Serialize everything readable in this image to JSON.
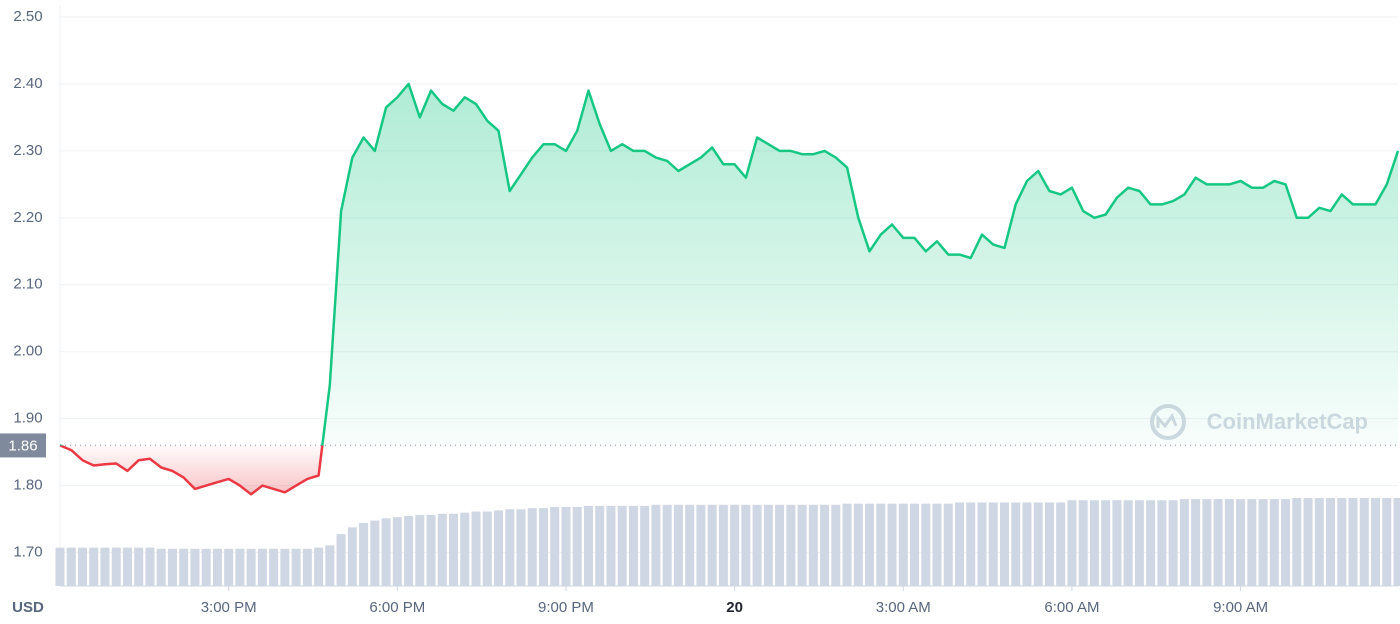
{
  "chart_data": {
    "type": "line",
    "y_label": "USD",
    "watermark": "CoinMarketCap",
    "baseline": 1.86,
    "color_up": "#16c784",
    "color_down": "#ea3943",
    "volume_color": "#cfd6e4",
    "grid": true,
    "xlim": [
      12,
      35.8
    ],
    "xticks": [
      {
        "value": 15,
        "label": "3:00 PM"
      },
      {
        "value": 18,
        "label": "6:00 PM"
      },
      {
        "value": 21,
        "label": "9:00 PM"
      },
      {
        "value": 24,
        "label": "20"
      },
      {
        "value": 27,
        "label": "3:00 AM"
      },
      {
        "value": 30,
        "label": "6:00 AM"
      },
      {
        "value": 33,
        "label": "9:00 AM"
      }
    ],
    "ylim": [
      1.65,
      2.5
    ],
    "yticks": [
      {
        "value": 1.7,
        "label": "1.70"
      },
      {
        "value": 1.8,
        "label": "1.80"
      },
      {
        "value": 1.9,
        "label": "1.90"
      },
      {
        "value": 2.0,
        "label": "2.00"
      },
      {
        "value": 2.1,
        "label": "2.10"
      },
      {
        "value": 2.2,
        "label": "2.20"
      },
      {
        "value": 2.3,
        "label": "2.30"
      },
      {
        "value": 2.4,
        "label": "2.40"
      },
      {
        "value": 2.5,
        "label": "2.50"
      }
    ],
    "x": [
      12.0,
      12.2,
      12.4,
      12.6,
      12.8,
      13.0,
      13.2,
      13.4,
      13.6,
      13.8,
      14.0,
      14.2,
      14.4,
      14.6,
      14.8,
      15.0,
      15.2,
      15.4,
      15.6,
      15.8,
      16.0,
      16.2,
      16.4,
      16.6,
      16.8,
      17.0,
      17.2,
      17.4,
      17.6,
      17.8,
      18.0,
      18.2,
      18.4,
      18.6,
      18.8,
      19.0,
      19.2,
      19.4,
      19.6,
      19.8,
      20.0,
      20.2,
      20.4,
      20.6,
      20.8,
      21.0,
      21.2,
      21.4,
      21.6,
      21.8,
      22.0,
      22.2,
      22.4,
      22.6,
      22.8,
      23.0,
      23.2,
      23.4,
      23.6,
      23.8,
      24.0,
      24.2,
      24.4,
      24.6,
      24.8,
      25.0,
      25.2,
      25.4,
      25.6,
      25.8,
      26.0,
      26.2,
      26.4,
      26.6,
      26.8,
      27.0,
      27.2,
      27.4,
      27.6,
      27.8,
      28.0,
      28.2,
      28.4,
      28.6,
      28.8,
      29.0,
      29.2,
      29.4,
      29.6,
      29.8,
      30.0,
      30.2,
      30.4,
      30.6,
      30.8,
      31.0,
      31.2,
      31.4,
      31.6,
      31.8,
      32.0,
      32.2,
      32.4,
      32.6,
      32.8,
      33.0,
      33.2,
      33.4,
      33.6,
      33.8,
      34.0,
      34.2,
      34.4,
      34.6,
      34.8,
      35.0,
      35.2,
      35.4,
      35.6,
      35.8
    ],
    "values": [
      1.86,
      1.853,
      1.838,
      1.83,
      1.832,
      1.833,
      1.822,
      1.838,
      1.84,
      1.827,
      1.822,
      1.812,
      1.795,
      1.8,
      1.805,
      1.81,
      1.8,
      1.787,
      1.8,
      1.795,
      1.79,
      1.8,
      1.81,
      1.815,
      1.95,
      2.21,
      2.29,
      2.32,
      2.3,
      2.365,
      2.38,
      2.4,
      2.35,
      2.39,
      2.37,
      2.36,
      2.38,
      2.37,
      2.345,
      2.33,
      2.24,
      2.265,
      2.29,
      2.31,
      2.31,
      2.3,
      2.33,
      2.39,
      2.34,
      2.3,
      2.31,
      2.3,
      2.3,
      2.29,
      2.285,
      2.27,
      2.28,
      2.29,
      2.305,
      2.28,
      2.28,
      2.26,
      2.32,
      2.31,
      2.3,
      2.3,
      2.295,
      2.295,
      2.3,
      2.29,
      2.275,
      2.2,
      2.15,
      2.175,
      2.19,
      2.17,
      2.17,
      2.15,
      2.165,
      2.145,
      2.145,
      2.14,
      2.175,
      2.16,
      2.155,
      2.22,
      2.255,
      2.27,
      2.24,
      2.235,
      2.245,
      2.21,
      2.2,
      2.205,
      2.23,
      2.245,
      2.24,
      2.22,
      2.22,
      2.225,
      2.235,
      2.26,
      2.25,
      2.25,
      2.25,
      2.255,
      2.245,
      2.245,
      2.255,
      2.25,
      2.2,
      2.2,
      2.215,
      2.21,
      2.235,
      2.22,
      2.22,
      2.22,
      2.25,
      2.3
    ],
    "volume": [
      34,
      34,
      34,
      34,
      34,
      34,
      34,
      34,
      34,
      33,
      33,
      33,
      33,
      33,
      33,
      33,
      33,
      33,
      33,
      33,
      33,
      33,
      33,
      34,
      36,
      46,
      52,
      56,
      58,
      60,
      61,
      62,
      63,
      63,
      64,
      64,
      65,
      66,
      66,
      67,
      68,
      68,
      69,
      69,
      70,
      70,
      70,
      71,
      71,
      71,
      71,
      71,
      71,
      72,
      72,
      72,
      72,
      72,
      72,
      72,
      72,
      72,
      72,
      72,
      72,
      72,
      72,
      72,
      72,
      72,
      73,
      73,
      73,
      73,
      73,
      73,
      73,
      73,
      73,
      73,
      74,
      74,
      74,
      74,
      74,
      74,
      74,
      74,
      74,
      74,
      76,
      76,
      76,
      76,
      76,
      76,
      76,
      76,
      76,
      76,
      77,
      77,
      77,
      77,
      77,
      77,
      77,
      77,
      77,
      77,
      78,
      78,
      78,
      78,
      78,
      78,
      78,
      78,
      78,
      78
    ]
  }
}
